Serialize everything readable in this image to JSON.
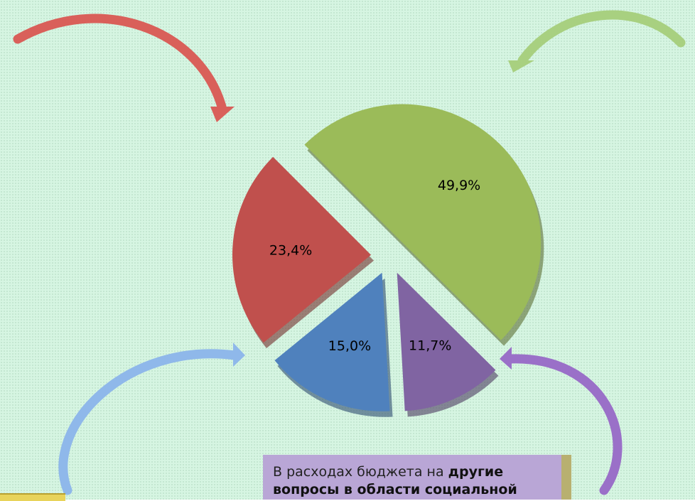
{
  "chart_data": {
    "type": "pie",
    "values": [
      49.9,
      11.7,
      15.0,
      23.4
    ],
    "value_labels": [
      "49,9%",
      "11,7%",
      "15,0%",
      "23,4%"
    ],
    "colors": [
      "#9bbb59",
      "#8064a2",
      "#4f81bd",
      "#c0504d"
    ]
  },
  "note": [
    "В расходах бюджета на ",
    "другие",
    "вопросы в области социальной"
  ]
}
